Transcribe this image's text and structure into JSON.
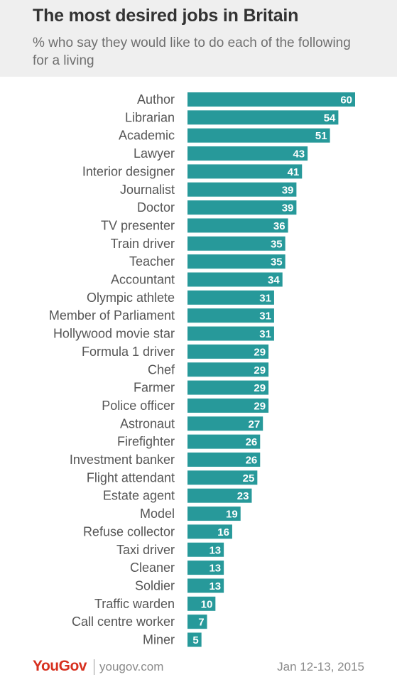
{
  "header": {
    "title": "The most desired jobs in Britain",
    "subtitle": "% who say they would like to do each of the following for a living"
  },
  "footer": {
    "brand": "YouGov",
    "site": "yougov.com",
    "date": "Jan 12-13, 2015"
  },
  "colors": {
    "bar": "#27999a",
    "header_bg": "#efefef",
    "brand": "#d7301f"
  },
  "chart_data": {
    "type": "bar",
    "orientation": "horizontal",
    "title": "The most desired jobs in Britain",
    "subtitle": "% who say they would like to do each of the following for a living",
    "xlabel": "",
    "ylabel": "",
    "xlim": [
      0,
      60
    ],
    "grid": false,
    "legend": "none",
    "categories": [
      "Author",
      "Librarian",
      "Academic",
      "Lawyer",
      "Interior designer",
      "Journalist",
      "Doctor",
      "TV presenter",
      "Train driver",
      "Teacher",
      "Accountant",
      "Olympic athlete",
      "Member of Parliament",
      "Hollywood movie star",
      "Formula 1 driver",
      "Chef",
      "Farmer",
      "Police officer",
      "Astronaut",
      "Firefighter",
      "Investment banker",
      "Flight attendant",
      "Estate agent",
      "Model",
      "Refuse collector",
      "Taxi driver",
      "Cleaner",
      "Soldier",
      "Traffic warden",
      "Call centre worker",
      "Miner"
    ],
    "values": [
      60,
      54,
      51,
      43,
      41,
      39,
      39,
      36,
      35,
      35,
      34,
      31,
      31,
      31,
      29,
      29,
      29,
      29,
      27,
      26,
      26,
      25,
      23,
      19,
      16,
      13,
      13,
      13,
      10,
      7,
      5
    ]
  }
}
